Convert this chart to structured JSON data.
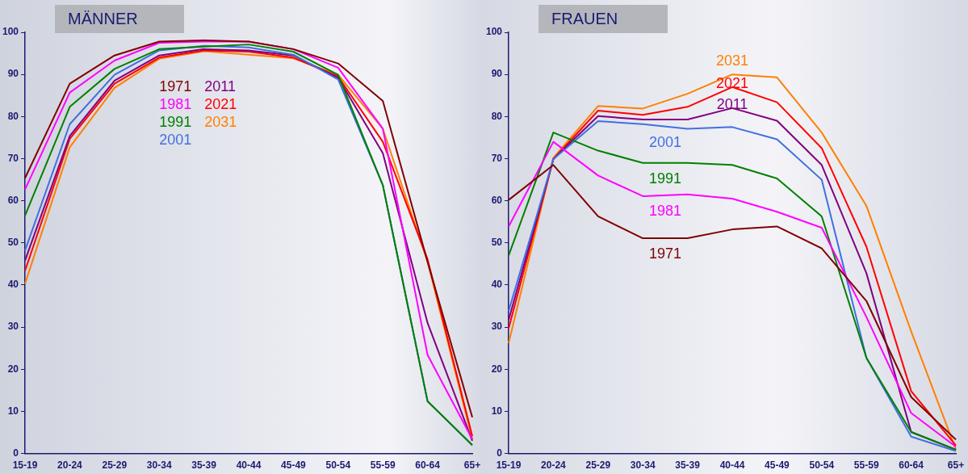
{
  "chart_data": [
    {
      "type": "line",
      "title": "MÄNNER",
      "categories": [
        "15-19",
        "20-24",
        "25-29",
        "30-34",
        "35-39",
        "40-44",
        "45-49",
        "50-54",
        "55-59",
        "60-64",
        "65+"
      ],
      "ylim": [
        0,
        100
      ],
      "yticks": [
        0,
        10,
        20,
        30,
        40,
        50,
        60,
        70,
        80,
        90,
        100
      ],
      "grid": false,
      "marker": "none",
      "legend": "top",
      "series": [
        {
          "name": "1971",
          "color": "#800000",
          "values": [
            65.4,
            87.8,
            94.5,
            97.8,
            98.1,
            97.8,
            96,
            92.6,
            83.7,
            45.5,
            8.6
          ]
        },
        {
          "name": "1981",
          "color": "#ff00ff",
          "values": [
            62.7,
            85.7,
            93.3,
            97.5,
            97.8,
            97.8,
            96,
            91.6,
            77.1,
            23.4,
            3.4
          ]
        },
        {
          "name": "1991",
          "color": "#008000",
          "values": [
            56.5,
            82.3,
            91.3,
            96,
            96.6,
            97.1,
            95.4,
            89.9,
            63.7,
            12.4,
            2
          ]
        },
        {
          "name": "2001",
          "color": "#4070e0",
          "values": [
            48.2,
            78.2,
            89.9,
            95.7,
            96.8,
            96.4,
            94.7,
            88.8,
            63.7,
            12.4,
            2
          ]
        },
        {
          "name": "2011",
          "color": "#800080",
          "values": [
            45.8,
            75.4,
            88.5,
            94.5,
            96,
            95.7,
            94.5,
            89.2,
            71.3,
            31,
            3
          ]
        },
        {
          "name": "2021",
          "color": "#ff0000",
          "values": [
            43.4,
            74.7,
            87.8,
            94,
            95.7,
            95.4,
            94,
            89.5,
            74,
            46.1,
            4.1
          ]
        },
        {
          "name": "2031",
          "color": "#ff8000",
          "values": [
            40.3,
            72.7,
            86.8,
            93.7,
            95.5,
            94.7,
            93.8,
            89.9,
            77.1,
            45.5,
            3.4
          ]
        }
      ]
    },
    {
      "type": "line",
      "title": "FRAUEN",
      "categories": [
        "15-19",
        "20-24",
        "25-29",
        "30-34",
        "35-39",
        "40-44",
        "45-49",
        "50-54",
        "55-59",
        "60-64",
        "65+"
      ],
      "ylim": [
        0,
        100
      ],
      "yticks": [
        0,
        10,
        20,
        30,
        40,
        50,
        60,
        70,
        80,
        90,
        100
      ],
      "grid": false,
      "marker": "none",
      "series": [
        {
          "name": "1971",
          "color": "#800000",
          "values": [
            60.2,
            68.5,
            56.3,
            51.1,
            51.1,
            53.2,
            53.9,
            48.7,
            36.2,
            13.4,
            3.3
          ]
        },
        {
          "name": "1981",
          "color": "#ff00ff",
          "values": [
            53.9,
            74,
            66,
            61.1,
            61.5,
            60.5,
            57.4,
            53.6,
            32.4,
            9.6,
            1.6
          ]
        },
        {
          "name": "1991",
          "color": "#008000",
          "values": [
            47,
            76.2,
            71.9,
            69,
            69,
            68.5,
            65.3,
            56.3,
            22.7,
            5.1,
            0.9
          ]
        },
        {
          "name": "2001",
          "color": "#4070e0",
          "values": [
            33.8,
            69.9,
            78.9,
            78.2,
            77.1,
            77.5,
            74.6,
            65,
            22.7,
            4,
            0.6
          ]
        },
        {
          "name": "2011",
          "color": "#800080",
          "values": [
            31.7,
            69.9,
            80.1,
            79.3,
            79.3,
            82,
            79,
            68.5,
            42.8,
            5.1,
            0.9
          ]
        },
        {
          "name": "2021",
          "color": "#ff0000",
          "values": [
            29.7,
            69.9,
            81.4,
            80.4,
            82.3,
            87,
            83.4,
            72.5,
            49.1,
            14.8,
            1.9
          ]
        },
        {
          "name": "2031",
          "color": "#ff8000",
          "values": [
            26.2,
            70.2,
            82.5,
            81.9,
            85.4,
            90,
            89.3,
            76.2,
            58.8,
            29,
            0.9
          ]
        }
      ]
    }
  ]
}
